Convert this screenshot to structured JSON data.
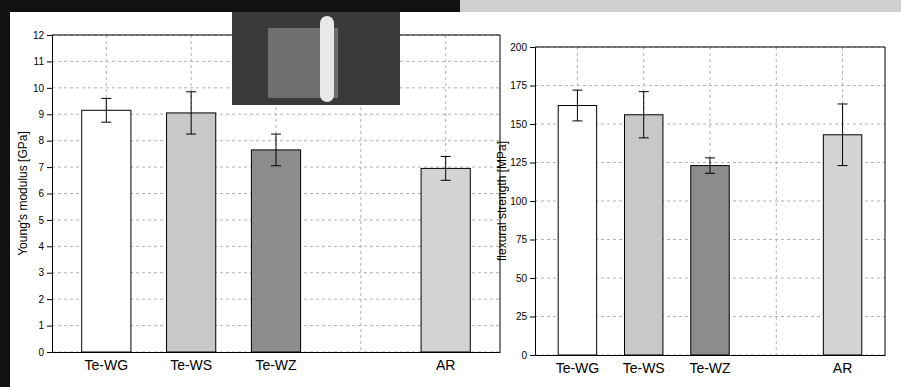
{
  "chart_data": [
    {
      "type": "bar",
      "y_label": "Young's modulus [GPa]",
      "categories": [
        "Te-WG",
        "Te-WS",
        "Te-WZ",
        null,
        "AR"
      ],
      "values": [
        9.15,
        9.05,
        7.65,
        null,
        6.95
      ],
      "errors": [
        0.45,
        0.8,
        0.6,
        null,
        0.45
      ],
      "colors": [
        "#ffffff",
        "#c8c8c8",
        "#8c8c8c",
        "#ffffff",
        "#d3d3d3"
      ],
      "ylim": [
        0,
        12
      ],
      "yticks": [
        0,
        1,
        2,
        3,
        4,
        5,
        6,
        7,
        8,
        9,
        10,
        11,
        12
      ],
      "grid": true
    },
    {
      "type": "bar",
      "y_label": "flexural strength [MPa]",
      "categories": [
        "Te-WG",
        "Te-WS",
        "Te-WZ",
        null,
        "AR"
      ],
      "values": [
        162,
        156,
        123,
        null,
        143
      ],
      "errors": [
        10,
        15,
        5,
        null,
        20
      ],
      "colors": [
        "#ffffff",
        "#c8c8c8",
        "#8c8c8c",
        "#ffffff",
        "#d3d3d3"
      ],
      "ylim": [
        0,
        200
      ],
      "yticks": [
        0,
        25,
        50,
        75,
        100,
        125,
        150,
        175,
        200
      ],
      "grid": true
    }
  ]
}
